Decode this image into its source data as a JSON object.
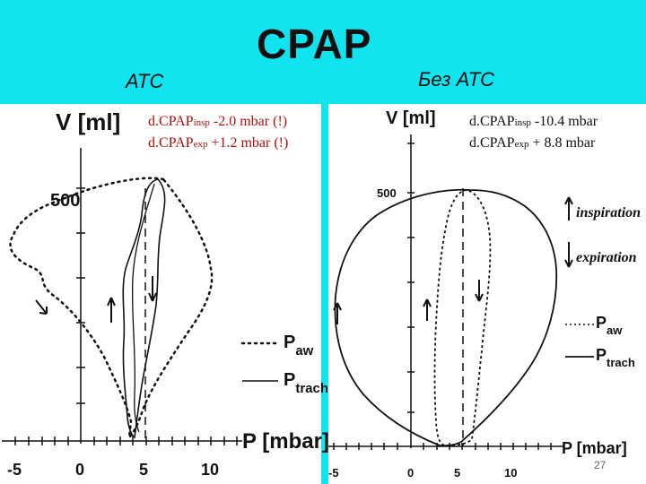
{
  "title": "CPAP",
  "left_label": "ATC",
  "right_label": "Без ATC",
  "left": {
    "y_axis_label": "V [ml]",
    "x_axis_label": "P [mbar]",
    "y_tick": "500",
    "x_ticks": [
      "-5",
      "0",
      "5",
      "10"
    ],
    "insp_prefix": "d.CPAP",
    "insp_sub": "insp",
    "insp_value": " -2.0 mbar (!)",
    "exp_prefix": "d.CPAP",
    "exp_sub": "exp",
    "exp_value": " +1.2 mbar (!)",
    "legend_aw_main": "P",
    "legend_aw_sub": "aw",
    "legend_trach_main": "P",
    "legend_trach_sub": "trach"
  },
  "right": {
    "y_axis_label": "V [ml]",
    "x_axis_label": "P [mbar]",
    "y_tick": "500",
    "x_ticks": [
      "-5",
      "0",
      "5",
      "10"
    ],
    "insp_prefix": "d.CPAP",
    "insp_sub": "insp",
    "insp_value": " -10.4 mbar",
    "exp_prefix": "d.CPAP",
    "exp_sub": "exp",
    "exp_value": "  + 8.8 mbar",
    "inspiration_label": "inspiration",
    "expiration_label": "expiration",
    "legend_aw_main": "P",
    "legend_aw_sub": "aw",
    "legend_trach_main": "P",
    "legend_trach_sub": "trach"
  },
  "page_number": "27"
}
